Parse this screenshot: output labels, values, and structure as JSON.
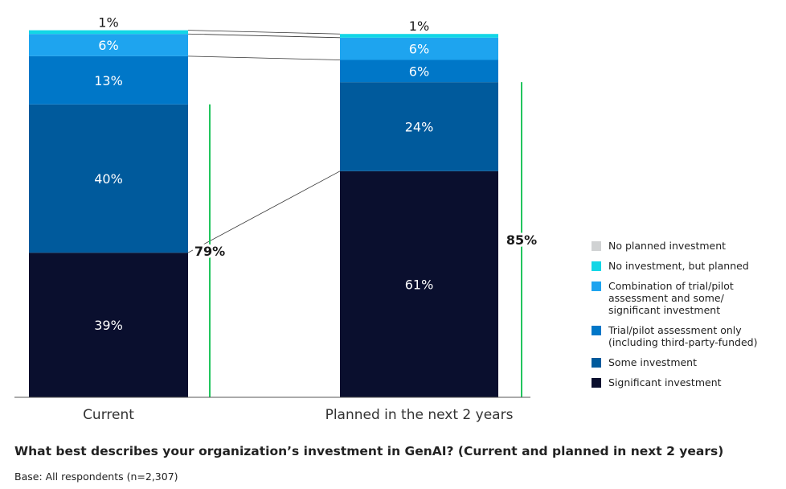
{
  "chart_data": {
    "type": "bar",
    "stacked": true,
    "categories": [
      "Current",
      "Planned in the next 2 years"
    ],
    "series": [
      {
        "name": "Significant investment",
        "color": "#0a0f2e",
        "values": [
          39,
          61
        ],
        "labels": [
          "39%",
          "61%"
        ]
      },
      {
        "name": "Some investment",
        "color": "#005a9c",
        "values": [
          40,
          24
        ],
        "labels": [
          "40%",
          "24%"
        ]
      },
      {
        "name": "Trial/pilot assessment only (including third-party-funded)",
        "color": "#0077c8",
        "values": [
          13,
          6
        ],
        "labels": [
          "13%",
          "6%"
        ]
      },
      {
        "name": "Combination of trial/pilot assessment and some/ significant investment",
        "color": "#1ea4ef",
        "values": [
          6,
          6
        ],
        "labels": [
          "6%",
          "6%"
        ]
      },
      {
        "name": "No investment, but planned",
        "color": "#12d6e6",
        "values": [
          1,
          1
        ],
        "labels": [
          "1%",
          "1%"
        ]
      },
      {
        "name": "No planned investment",
        "color": "#d0d2d3",
        "values": [
          0,
          0
        ],
        "labels": [
          "",
          ""
        ]
      }
    ],
    "brackets": [
      {
        "category": "Current",
        "label": "79%",
        "from_value": 0,
        "to_value": 79,
        "color": "#22c55e"
      },
      {
        "category": "Planned in the next 2 years",
        "label": "85%",
        "from_value": 0,
        "to_value": 85,
        "color": "#22c55e"
      }
    ],
    "ylim": [
      0,
      100
    ],
    "legend_position": "right"
  },
  "question": "What best describes your organization’s investment in GenAI? (Current and planned in next 2 years)",
  "base": "Base: All respondents (n=2,307)",
  "legend": [
    {
      "label": "No planned investment",
      "color": "#d0d2d3"
    },
    {
      "label": "No investment, but planned",
      "color": "#12d6e6"
    },
    {
      "label": "Combination of trial/pilot assessment and some/ significant investment",
      "color": "#1ea4ef"
    },
    {
      "label": "Trial/pilot assessment only (including third-party-funded)",
      "color": "#0077c8"
    },
    {
      "label": "Some investment",
      "color": "#005a9c"
    },
    {
      "label": "Significant investment",
      "color": "#0a0f2e"
    }
  ]
}
